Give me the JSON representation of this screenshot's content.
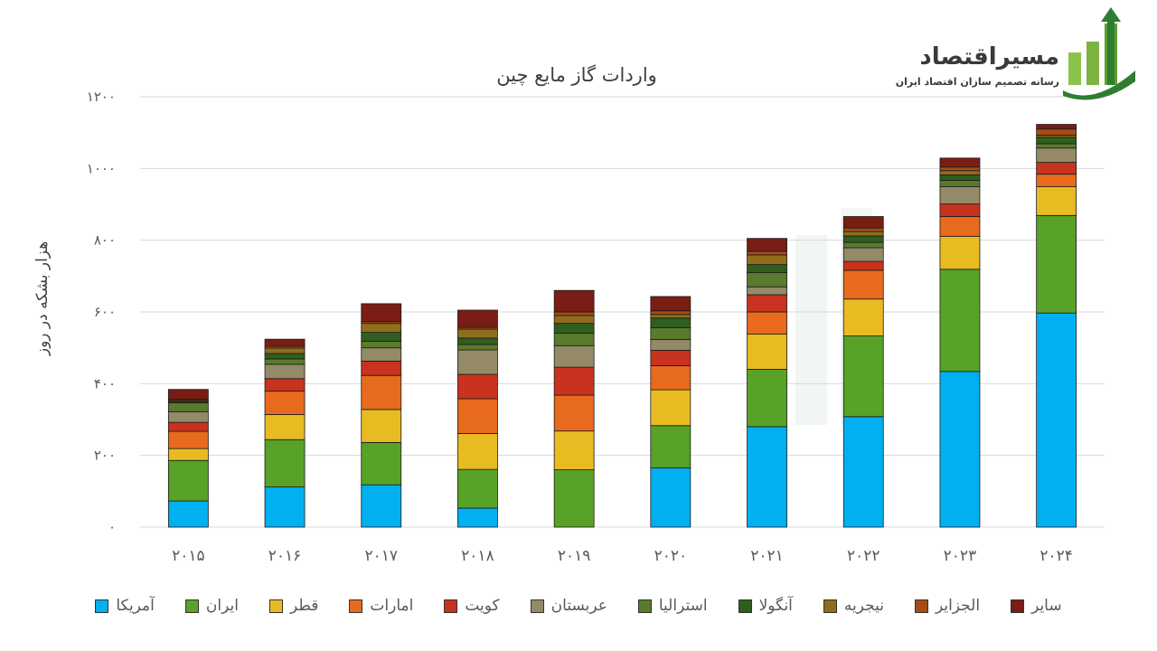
{
  "logo": {
    "name": "مسیراقتصاد",
    "tagline": "رسانه تصمیم سازان اقتصاد ایران"
  },
  "chart_data": {
    "type": "bar",
    "stacked": true,
    "title": "واردات گاز مایع چین",
    "ylabel": "هزار بشکه در روز",
    "xlabel": "",
    "ylim": [
      0,
      1200
    ],
    "yticks": [
      "۰",
      "۲۰۰",
      "۴۰۰",
      "۶۰۰",
      "۸۰۰",
      "۱۰۰۰",
      "۱۲۰۰"
    ],
    "grid": true,
    "legend_position": "bottom",
    "categories": [
      "۲۰۱۵",
      "۲۰۱۶",
      "۲۰۱۷",
      "۲۰۱۸",
      "۲۰۱۹",
      "۲۰۲۰",
      "۲۰۲۱",
      "۲۰۲۲",
      "۲۰۲۳",
      "۲۰۲۴"
    ],
    "series": [
      {
        "name": "آمریکا",
        "color": "#00b0f0",
        "values": [
          73,
          112,
          118,
          53,
          0,
          165,
          280,
          308,
          434,
          597
        ]
      },
      {
        "name": "ایران",
        "color": "#57a227",
        "values": [
          113,
          132,
          118,
          108,
          160,
          118,
          160,
          225,
          285,
          272
        ]
      },
      {
        "name": "قطر",
        "color": "#e8bb23",
        "values": [
          33,
          70,
          92,
          100,
          108,
          100,
          98,
          103,
          92,
          80
        ]
      },
      {
        "name": "امارات",
        "color": "#e86a1d",
        "values": [
          48,
          65,
          95,
          97,
          100,
          67,
          62,
          80,
          55,
          35
        ]
      },
      {
        "name": "کویت",
        "color": "#c8321e",
        "values": [
          25,
          35,
          40,
          68,
          78,
          43,
          48,
          25,
          35,
          33
        ]
      },
      {
        "name": "عربستان",
        "color": "#948a68",
        "values": [
          30,
          40,
          37,
          68,
          60,
          30,
          22,
          38,
          48,
          40
        ]
      },
      {
        "name": "استرالیا",
        "color": "#5a7b2c",
        "values": [
          25,
          15,
          18,
          15,
          35,
          33,
          40,
          15,
          18,
          12
        ]
      },
      {
        "name": "آنگولا",
        "color": "#305e1e",
        "values": [
          3,
          15,
          25,
          18,
          27,
          27,
          22,
          18,
          15,
          18
        ]
      },
      {
        "name": "نیجریه",
        "color": "#8f6d1c",
        "values": [
          3,
          15,
          25,
          25,
          22,
          10,
          27,
          12,
          12,
          6
        ]
      },
      {
        "name": "الجزایر",
        "color": "#a44c14",
        "values": [
          3,
          5,
          5,
          5,
          10,
          10,
          10,
          10,
          10,
          17
        ]
      },
      {
        "name": "سایر",
        "color": "#7a1d14",
        "values": [
          28,
          20,
          50,
          48,
          60,
          40,
          36,
          32,
          25,
          13
        ]
      }
    ]
  }
}
